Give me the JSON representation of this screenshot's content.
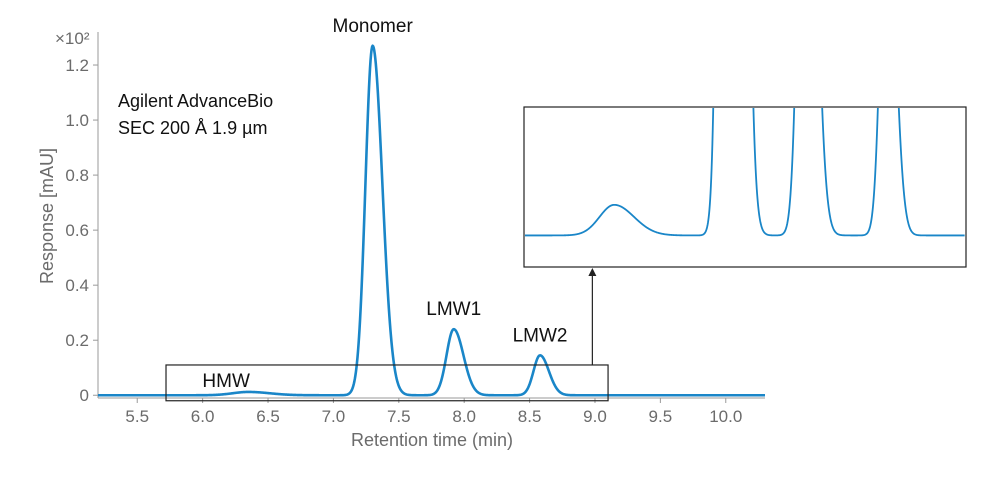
{
  "chart_data": {
    "type": "line",
    "xlabel": "Retention time (min)",
    "ylabel": "Response [mAU]",
    "y_multiplier": "×10²",
    "xlim": [
      5.2,
      10.3
    ],
    "ylim": [
      -0.01,
      1.32
    ],
    "x_ticks": [
      "5.5",
      "6.0",
      "6.5",
      "7.0",
      "7.5",
      "8.0",
      "8.5",
      "9.0",
      "9.5",
      "10.0"
    ],
    "y_ticks": [
      "0",
      "0.2",
      "0.4",
      "0.6",
      "0.8",
      "1.0",
      "1.2"
    ],
    "column_note": [
      "Agilent AdvanceBio",
      "SEC 200 Å 1.9 µm"
    ],
    "line_color": "#1a86c8",
    "peaks": [
      {
        "label": "HMW",
        "rt": 6.35,
        "height": 0.012,
        "sigma": 0.12
      },
      {
        "label": "Monomer",
        "rt": 7.3,
        "height": 1.27,
        "sigma": 0.055
      },
      {
        "label": "LMW1",
        "rt": 7.92,
        "height": 0.24,
        "sigma": 0.055
      },
      {
        "label": "LMW2",
        "rt": 8.58,
        "height": 0.145,
        "sigma": 0.05
      }
    ],
    "zoom_region": {
      "x": [
        5.72,
        9.1
      ],
      "y": [
        -0.02,
        0.11
      ]
    },
    "grid": false
  }
}
